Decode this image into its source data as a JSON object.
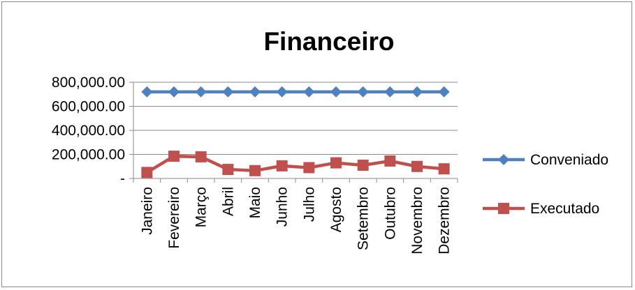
{
  "chart_data": {
    "type": "line",
    "title": "Financeiro",
    "xlabel": "",
    "ylabel": "",
    "categories": [
      "Janeiro",
      "Fevereiro",
      "Março",
      "Abril",
      "Maio",
      "Junho",
      "Julho",
      "Agosto",
      "Setembro",
      "Outubro",
      "Novembro",
      "Dezembro"
    ],
    "ylim": [
      0,
      800000
    ],
    "yticks": [
      0,
      200000,
      400000,
      600000,
      800000
    ],
    "ytick_labels": [
      "-",
      "200,000.00",
      "400,000.00",
      "600,000.00",
      "800,000.00"
    ],
    "grid": true,
    "legend_position": "right",
    "series": [
      {
        "name": "Conveniado",
        "color": "#4F81BD",
        "marker": "diamond",
        "values": [
          720000,
          720000,
          720000,
          720000,
          720000,
          720000,
          720000,
          720000,
          720000,
          720000,
          720000,
          720000
        ]
      },
      {
        "name": "Executado",
        "color": "#C0504D",
        "marker": "square",
        "values": [
          50000,
          185000,
          180000,
          75000,
          65000,
          105000,
          90000,
          130000,
          110000,
          145000,
          100000,
          80000
        ]
      }
    ]
  }
}
